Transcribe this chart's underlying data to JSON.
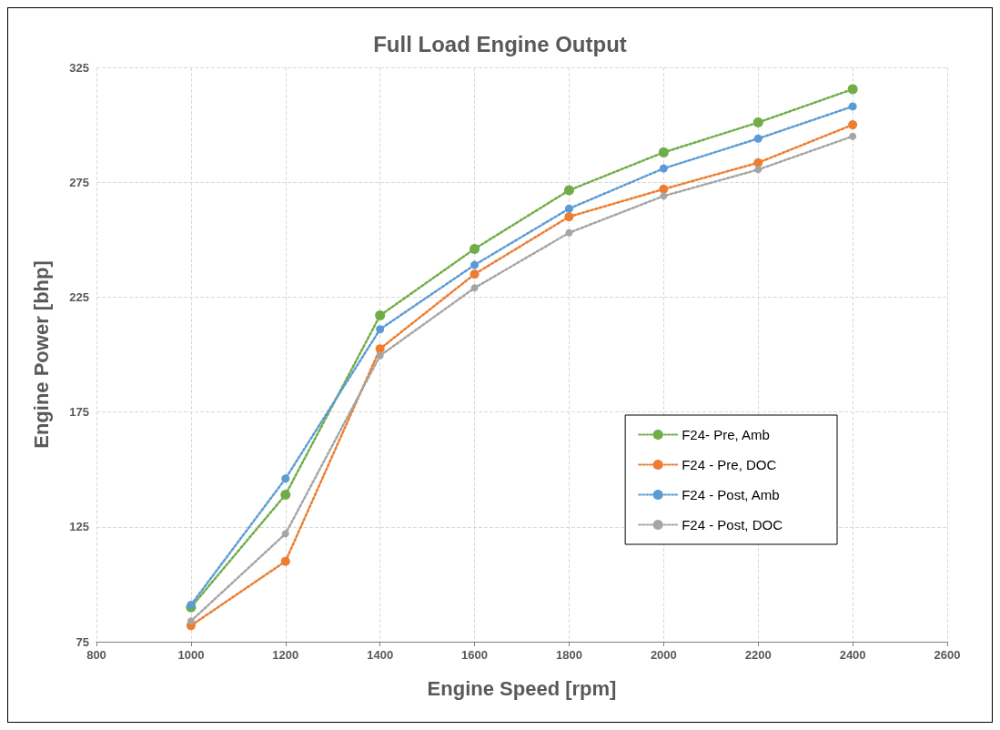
{
  "chart_data": {
    "type": "line",
    "title": "Full Load Engine Output",
    "xlabel": "Engine Speed [rpm]",
    "ylabel": "Engine Power [bhp]",
    "x": [
      1000,
      1200,
      1400,
      1600,
      1800,
      2000,
      2200,
      2400
    ],
    "series": [
      {
        "name": "F24- Pre, Amb",
        "color": "#70ad47",
        "values": [
          90,
          139,
          217,
          246,
          271.5,
          288,
          301,
          315.5
        ]
      },
      {
        "name": "F24 - Pre, DOC",
        "color": "#ed7d31",
        "values": [
          82,
          110,
          202.5,
          235,
          260,
          272,
          283.5,
          300
        ]
      },
      {
        "name": "F24 - Post, Amb",
        "color": "#5b9bd5",
        "values": [
          91,
          146,
          211,
          239,
          263.5,
          281,
          294,
          308
        ]
      },
      {
        "name": "F24 - Post, DOC",
        "color": "#a5a5a5",
        "values": [
          84,
          122,
          199.5,
          229,
          253,
          269,
          280.5,
          295
        ]
      }
    ],
    "xlim": [
      800,
      2600
    ],
    "xticks": [
      800,
      1000,
      1200,
      1400,
      1600,
      1800,
      2000,
      2200,
      2400,
      2600
    ],
    "ylim": [
      75,
      325
    ],
    "yticks": [
      75,
      125,
      175,
      225,
      275,
      325
    ],
    "grid": true,
    "legend": "right",
    "marker": "circle",
    "line_style": "dotted"
  }
}
